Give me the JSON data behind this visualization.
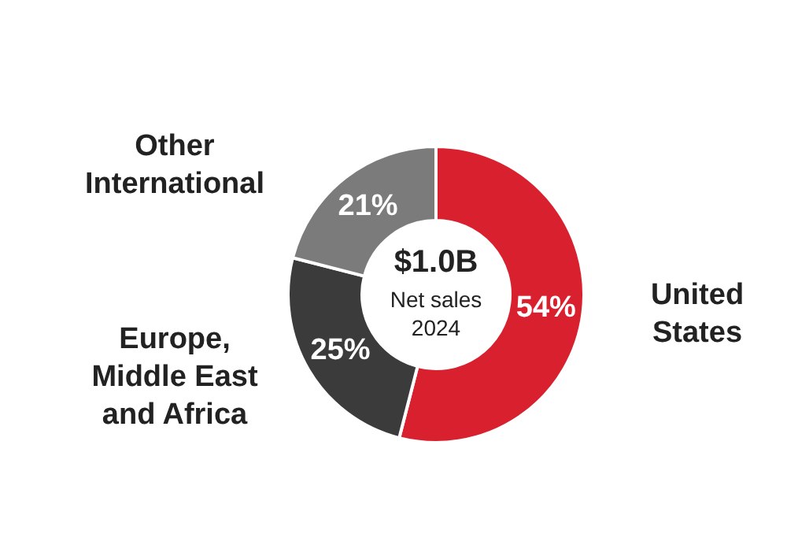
{
  "chart_data": {
    "type": "donut",
    "categories": [
      "United States",
      "Europe, Middle East and Africa",
      "Other International"
    ],
    "values": [
      54,
      25,
      21
    ],
    "colors": [
      "#d9202e",
      "#3b3b3b",
      "#7b7b7b"
    ],
    "value_labels": [
      "54%",
      "25%",
      "21%"
    ],
    "legend": false,
    "annotations": [
      "$1.0B",
      "Net sales",
      "2024"
    ]
  }
}
